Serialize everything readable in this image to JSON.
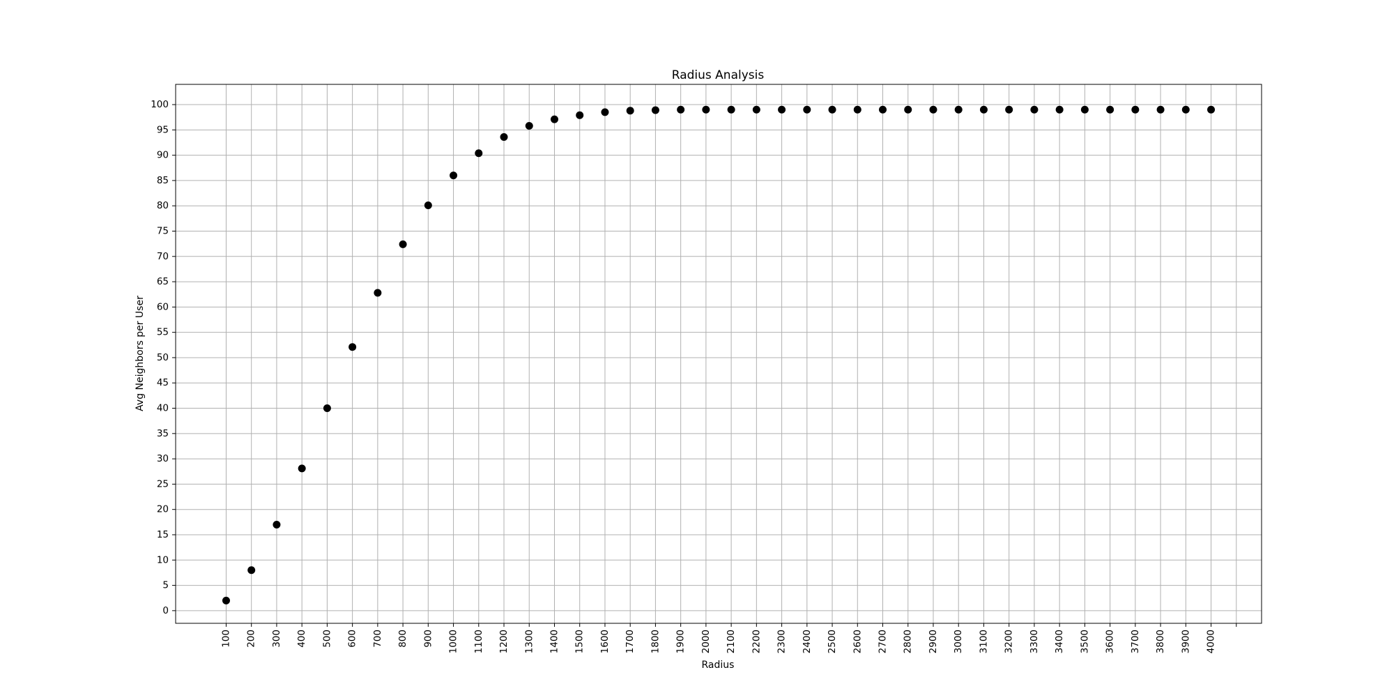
{
  "chart_data": {
    "type": "scatter",
    "title": "Radius Analysis",
    "xlabel": "Radius",
    "ylabel": "Avg Neighbors per User",
    "x": [
      100,
      200,
      300,
      400,
      500,
      600,
      700,
      800,
      900,
      1000,
      1100,
      1200,
      1300,
      1400,
      1500,
      1600,
      1700,
      1800,
      1900,
      2000,
      2100,
      2200,
      2300,
      2400,
      2500,
      2600,
      2700,
      2800,
      2900,
      3000,
      3100,
      3200,
      3300,
      3400,
      3500,
      3600,
      3700,
      3800,
      3900,
      4000
    ],
    "series": [
      {
        "values": [
          2.0,
          8.0,
          17.0,
          28.1,
          40.0,
          52.1,
          62.8,
          72.4,
          80.1,
          86.0,
          90.4,
          93.6,
          95.8,
          97.1,
          97.9,
          98.5,
          98.8,
          98.9,
          99.0,
          99.0,
          99.0,
          99.0,
          99.0,
          99.0,
          99.0,
          99.0,
          99.0,
          99.0,
          99.0,
          99.0,
          99.0,
          99.0,
          99.0,
          99.0,
          99.0,
          99.0,
          99.0,
          99.0,
          99.0,
          99.0
        ],
        "color": "#000000",
        "marker": "circle"
      }
    ],
    "x_ticks": [
      "100",
      "200",
      "300",
      "400",
      "500",
      "600",
      "700",
      "800",
      "900",
      "1000",
      "1100",
      "1200",
      "1300",
      "1400",
      "1500",
      "1600",
      "1700",
      "1800",
      "1900",
      "2000",
      "2100",
      "2200",
      "2300",
      "2400",
      "2500",
      "2600",
      "2700",
      "2800",
      "2900",
      "3000",
      "3100",
      "3200",
      "3300",
      "3400",
      "3500",
      "3600",
      "3700",
      "3800",
      "3900",
      "4000",
      ""
    ],
    "y_ticks": [
      0,
      5,
      10,
      15,
      20,
      25,
      30,
      35,
      40,
      45,
      50,
      55,
      60,
      65,
      70,
      75,
      80,
      85,
      90,
      95,
      100
    ],
    "xlim": [
      -100,
      4200
    ],
    "ylim": [
      -2.5,
      104
    ],
    "grid": true,
    "colors": {
      "marker": "#000000",
      "grid": "#b0b0b0",
      "axes": "#000000",
      "background": "#ffffff"
    }
  }
}
